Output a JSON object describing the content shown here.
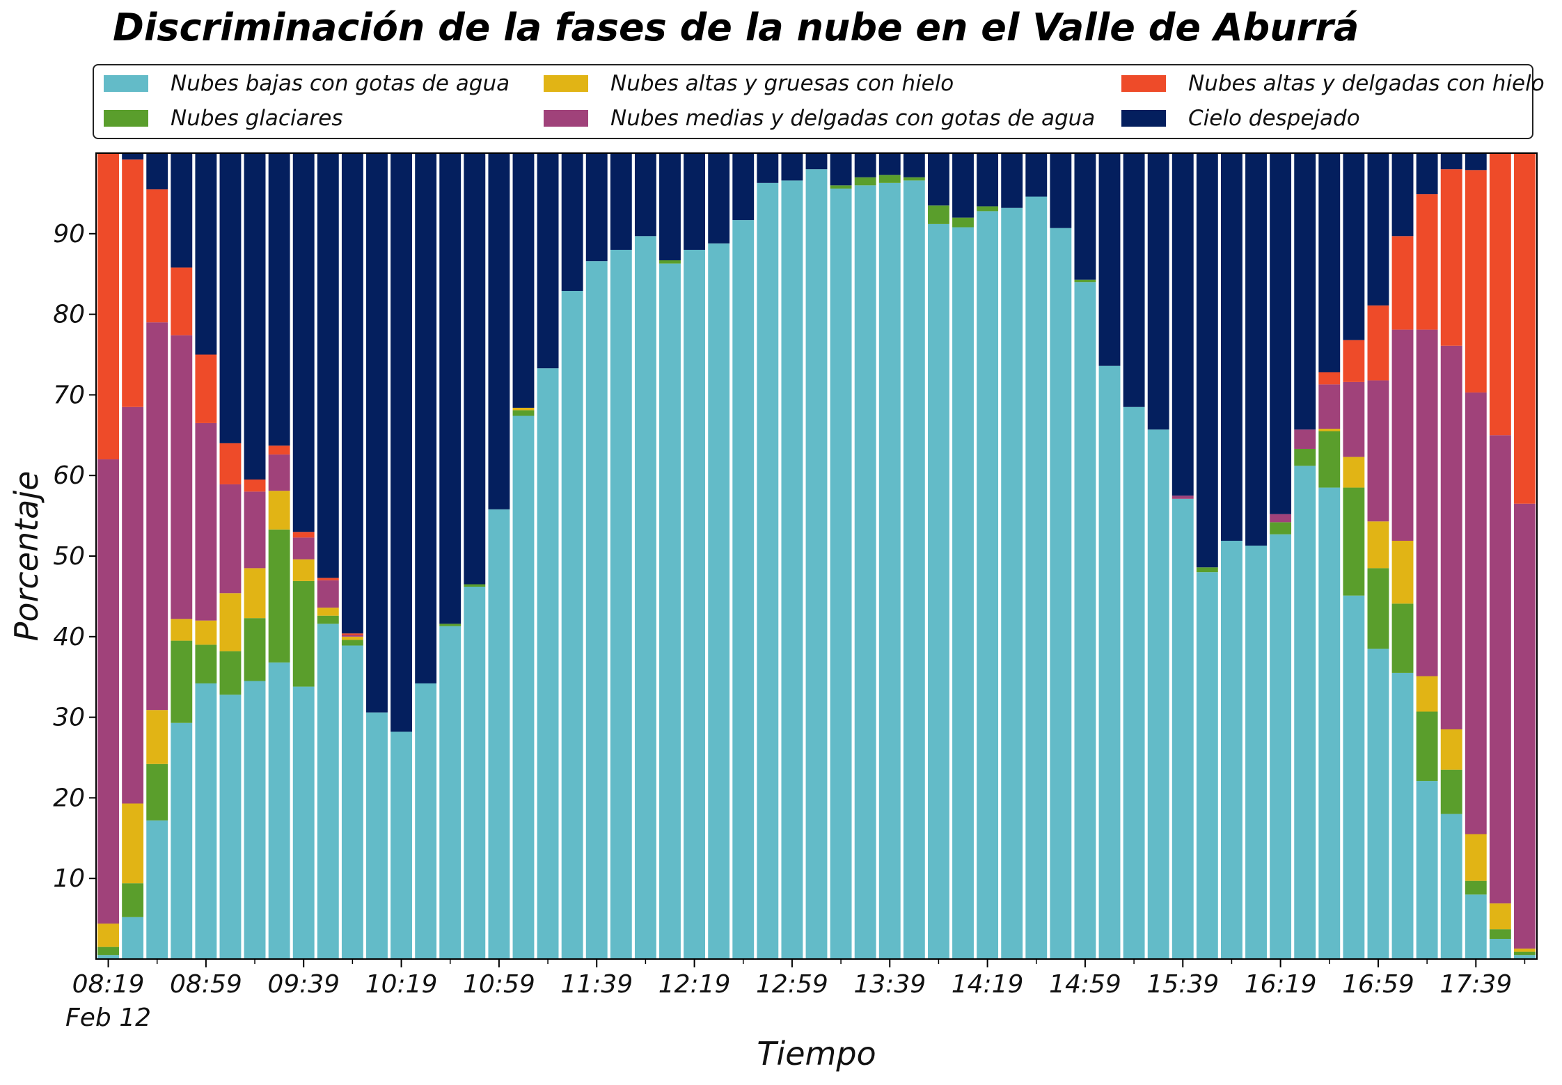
{
  "chart_data": {
    "type": "bar",
    "stacked": true,
    "title": "Discriminación de la fases de la nube en el Valle de Aburrá",
    "xlabel": "Tiempo",
    "ylabel": "Porcentaje",
    "ylim": [
      0,
      100
    ],
    "yticks": [
      10,
      20,
      30,
      40,
      50,
      60,
      70,
      80,
      90
    ],
    "x_tick_labels": [
      "08:19",
      "08:59",
      "09:39",
      "10:19",
      "10:59",
      "11:39",
      "12:19",
      "12:59",
      "13:39",
      "14:19",
      "14:59",
      "15:39",
      "16:19",
      "16:59",
      "17:39"
    ],
    "x_date_label": "Feb 12",
    "legend_position": "top",
    "grid": false,
    "series": [
      {
        "name": "Nubes bajas con gotas de agua",
        "color": "#63bbc8",
        "values": [
          0.5,
          5.2,
          17.2,
          29.3,
          34.2,
          32.8,
          34.5,
          36.8,
          33.8,
          41.6,
          38.9,
          30.6,
          28.2,
          34.2,
          41.3,
          46.2,
          55.8,
          67.4,
          73.3,
          82.9,
          86.6,
          88.0,
          89.7,
          86.3,
          88.0,
          88.8,
          91.7,
          96.3,
          96.6,
          98.0,
          95.6,
          96.0,
          96.3,
          96.6,
          91.2,
          90.8,
          92.8,
          93.2,
          94.6,
          90.7,
          84.0,
          73.6,
          68.5,
          65.7,
          57.1,
          48.0,
          51.9,
          51.3,
          52.7,
          61.2,
          58.5,
          45.1,
          38.5,
          35.5,
          22.1,
          18.0,
          8.0,
          2.5,
          0.5
        ]
      },
      {
        "name": "Nubes glaciares",
        "color": "#5a9e2c",
        "values": [
          1.0,
          4.2,
          7.0,
          10.2,
          4.8,
          5.4,
          7.8,
          16.5,
          13.1,
          1.0,
          0.7,
          0,
          0,
          0,
          0.3,
          0.3,
          0,
          0.7,
          0,
          0,
          0,
          0,
          0,
          0.4,
          0,
          0,
          0,
          0,
          0,
          0,
          0.4,
          1.0,
          1.0,
          0.4,
          2.3,
          1.2,
          0.6,
          0,
          0,
          0,
          0.3,
          0,
          0,
          0,
          0,
          0.6,
          0,
          0,
          1.5,
          2.1,
          7.0,
          13.4,
          10.0,
          8.6,
          8.6,
          5.5,
          1.7,
          1.2,
          0.4
        ]
      },
      {
        "name": "Nubes altas y gruesas con hielo",
        "color": "#e1b415",
        "values": [
          2.9,
          9.9,
          6.7,
          2.7,
          3.0,
          7.2,
          6.2,
          4.8,
          2.7,
          1.0,
          0.4,
          0,
          0,
          0,
          0,
          0,
          0,
          0.3,
          0,
          0,
          0,
          0,
          0,
          0,
          0,
          0,
          0,
          0,
          0,
          0,
          0,
          0,
          0,
          0,
          0,
          0,
          0,
          0,
          0,
          0,
          0,
          0,
          0,
          0,
          0,
          0,
          0,
          0,
          0,
          0,
          0.3,
          3.8,
          5.8,
          7.8,
          4.4,
          5.0,
          5.8,
          3.2,
          0.4
        ]
      },
      {
        "name": "Nubes medias y delgadas con gotas de agua",
        "color": "#a0427a",
        "values": [
          57.6,
          49.2,
          48.1,
          35.2,
          24.5,
          13.5,
          9.5,
          4.5,
          2.7,
          3.4,
          0.2,
          0,
          0,
          0,
          0,
          0,
          0,
          0,
          0,
          0,
          0,
          0,
          0,
          0,
          0,
          0,
          0,
          0,
          0,
          0,
          0,
          0,
          0,
          0,
          0,
          0,
          0,
          0,
          0,
          0,
          0,
          0,
          0,
          0,
          0.4,
          0,
          0,
          0,
          1.0,
          2.4,
          5.5,
          9.3,
          17.5,
          26.2,
          43.0,
          47.6,
          54.8,
          58.1,
          55.2
        ]
      },
      {
        "name": "Nubes altas y delgadas con hielo",
        "color": "#ee4b29",
        "values": [
          38.0,
          30.7,
          16.5,
          8.4,
          8.5,
          5.1,
          1.5,
          1.1,
          0.7,
          0.3,
          0.2,
          0,
          0,
          0,
          0,
          0,
          0,
          0,
          0,
          0,
          0,
          0,
          0,
          0,
          0,
          0,
          0,
          0,
          0,
          0,
          0,
          0,
          0,
          0,
          0,
          0,
          0,
          0,
          0,
          0,
          0,
          0,
          0,
          0,
          0,
          0,
          0,
          0,
          0,
          0,
          1.5,
          5.2,
          9.3,
          11.6,
          16.8,
          21.9,
          27.6,
          35.0,
          43.5
        ]
      },
      {
        "name": "Cielo despejado",
        "color": "#041f5e",
        "values": [
          0,
          0.8,
          4.5,
          14.2,
          25.0,
          36.0,
          40.5,
          36.3,
          47.0,
          52.7,
          59.6,
          69.4,
          71.8,
          65.8,
          58.4,
          53.5,
          44.2,
          31.6,
          26.7,
          17.1,
          13.4,
          12.0,
          10.3,
          13.3,
          12.0,
          11.2,
          8.3,
          3.7,
          3.4,
          2.0,
          4.0,
          3.0,
          2.7,
          3.0,
          6.5,
          8.0,
          6.6,
          6.8,
          5.4,
          9.3,
          15.7,
          26.4,
          31.5,
          34.3,
          42.5,
          51.4,
          48.1,
          48.7,
          44.8,
          34.3,
          27.2,
          23.2,
          18.9,
          10.3,
          5.1,
          2.0,
          2.1,
          0,
          0
        ]
      }
    ]
  }
}
